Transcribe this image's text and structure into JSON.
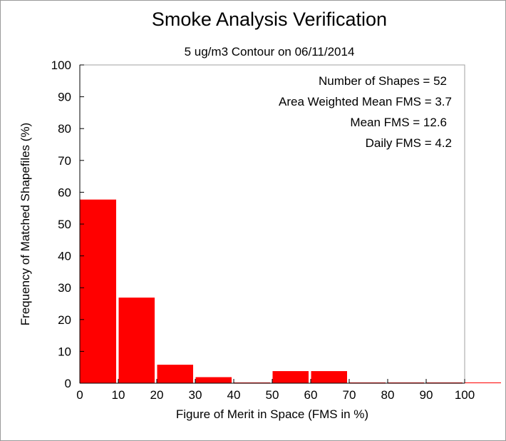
{
  "chart_data": {
    "type": "bar",
    "title": "Smoke Analysis Verification",
    "subtitle": "5 ug/m3 Contour on 06/11/2014",
    "xlabel": "Figure of Merit in Space (FMS in %)",
    "ylabel": "Frequency of Matched Shapefiles (%)",
    "xlim": [
      0,
      110
    ],
    "ylim": [
      0,
      100
    ],
    "xticks": [
      0,
      10,
      20,
      30,
      40,
      50,
      60,
      70,
      80,
      90,
      100
    ],
    "yticks": [
      0,
      10,
      20,
      30,
      40,
      50,
      60,
      70,
      80,
      90,
      100
    ],
    "bins": [
      {
        "x0": 0,
        "x1": 10,
        "value": 57.7
      },
      {
        "x0": 10,
        "x1": 20,
        "value": 26.9
      },
      {
        "x0": 20,
        "x1": 30,
        "value": 5.8
      },
      {
        "x0": 30,
        "x1": 40,
        "value": 1.9
      },
      {
        "x0": 40,
        "x1": 50,
        "value": 0
      },
      {
        "x0": 50,
        "x1": 60,
        "value": 3.8
      },
      {
        "x0": 60,
        "x1": 70,
        "value": 3.8
      },
      {
        "x0": 70,
        "x1": 80,
        "value": 0
      },
      {
        "x0": 80,
        "x1": 90,
        "value": 0
      },
      {
        "x0": 90,
        "x1": 100,
        "value": 0
      },
      {
        "x0": 100,
        "x1": 110,
        "value": 0
      }
    ],
    "bar_color": "#ff0000",
    "grid": false,
    "annotations": [
      "Number of Shapes = 52",
      "Area Weighted Mean FMS = 3.7",
      "Mean FMS = 12.6",
      "Daily FMS = 4.2"
    ]
  }
}
